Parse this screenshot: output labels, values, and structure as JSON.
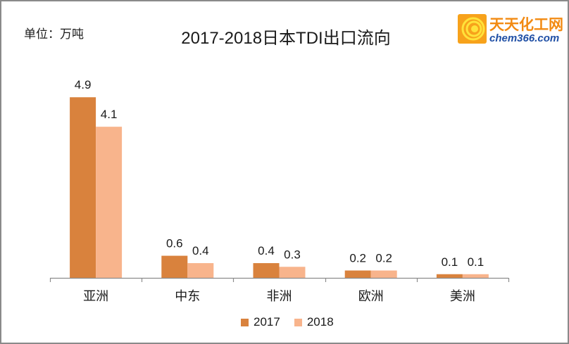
{
  "unit_label": "单位：万吨",
  "logo": {
    "name_cn": "天天化工网",
    "name_en": "chem366.com"
  },
  "colors": {
    "s2017": "#d9823d",
    "s2018": "#f8b48c",
    "axis": "#8c8c8c"
  },
  "chart_data": {
    "type": "bar",
    "title": "2017-2018日本TDI出口流向",
    "xlabel": "",
    "ylabel": "单位：万吨",
    "categories": [
      "亚洲",
      "中东",
      "非洲",
      "欧洲",
      "美洲"
    ],
    "series": [
      {
        "name": "2017",
        "values": [
          4.9,
          0.6,
          0.4,
          0.2,
          0.1
        ]
      },
      {
        "name": "2018",
        "values": [
          4.1,
          0.4,
          0.3,
          0.2,
          0.1
        ]
      }
    ],
    "ylim": [
      0,
      5
    ],
    "grid": false,
    "data_labels": true,
    "legend_position": "bottom"
  }
}
